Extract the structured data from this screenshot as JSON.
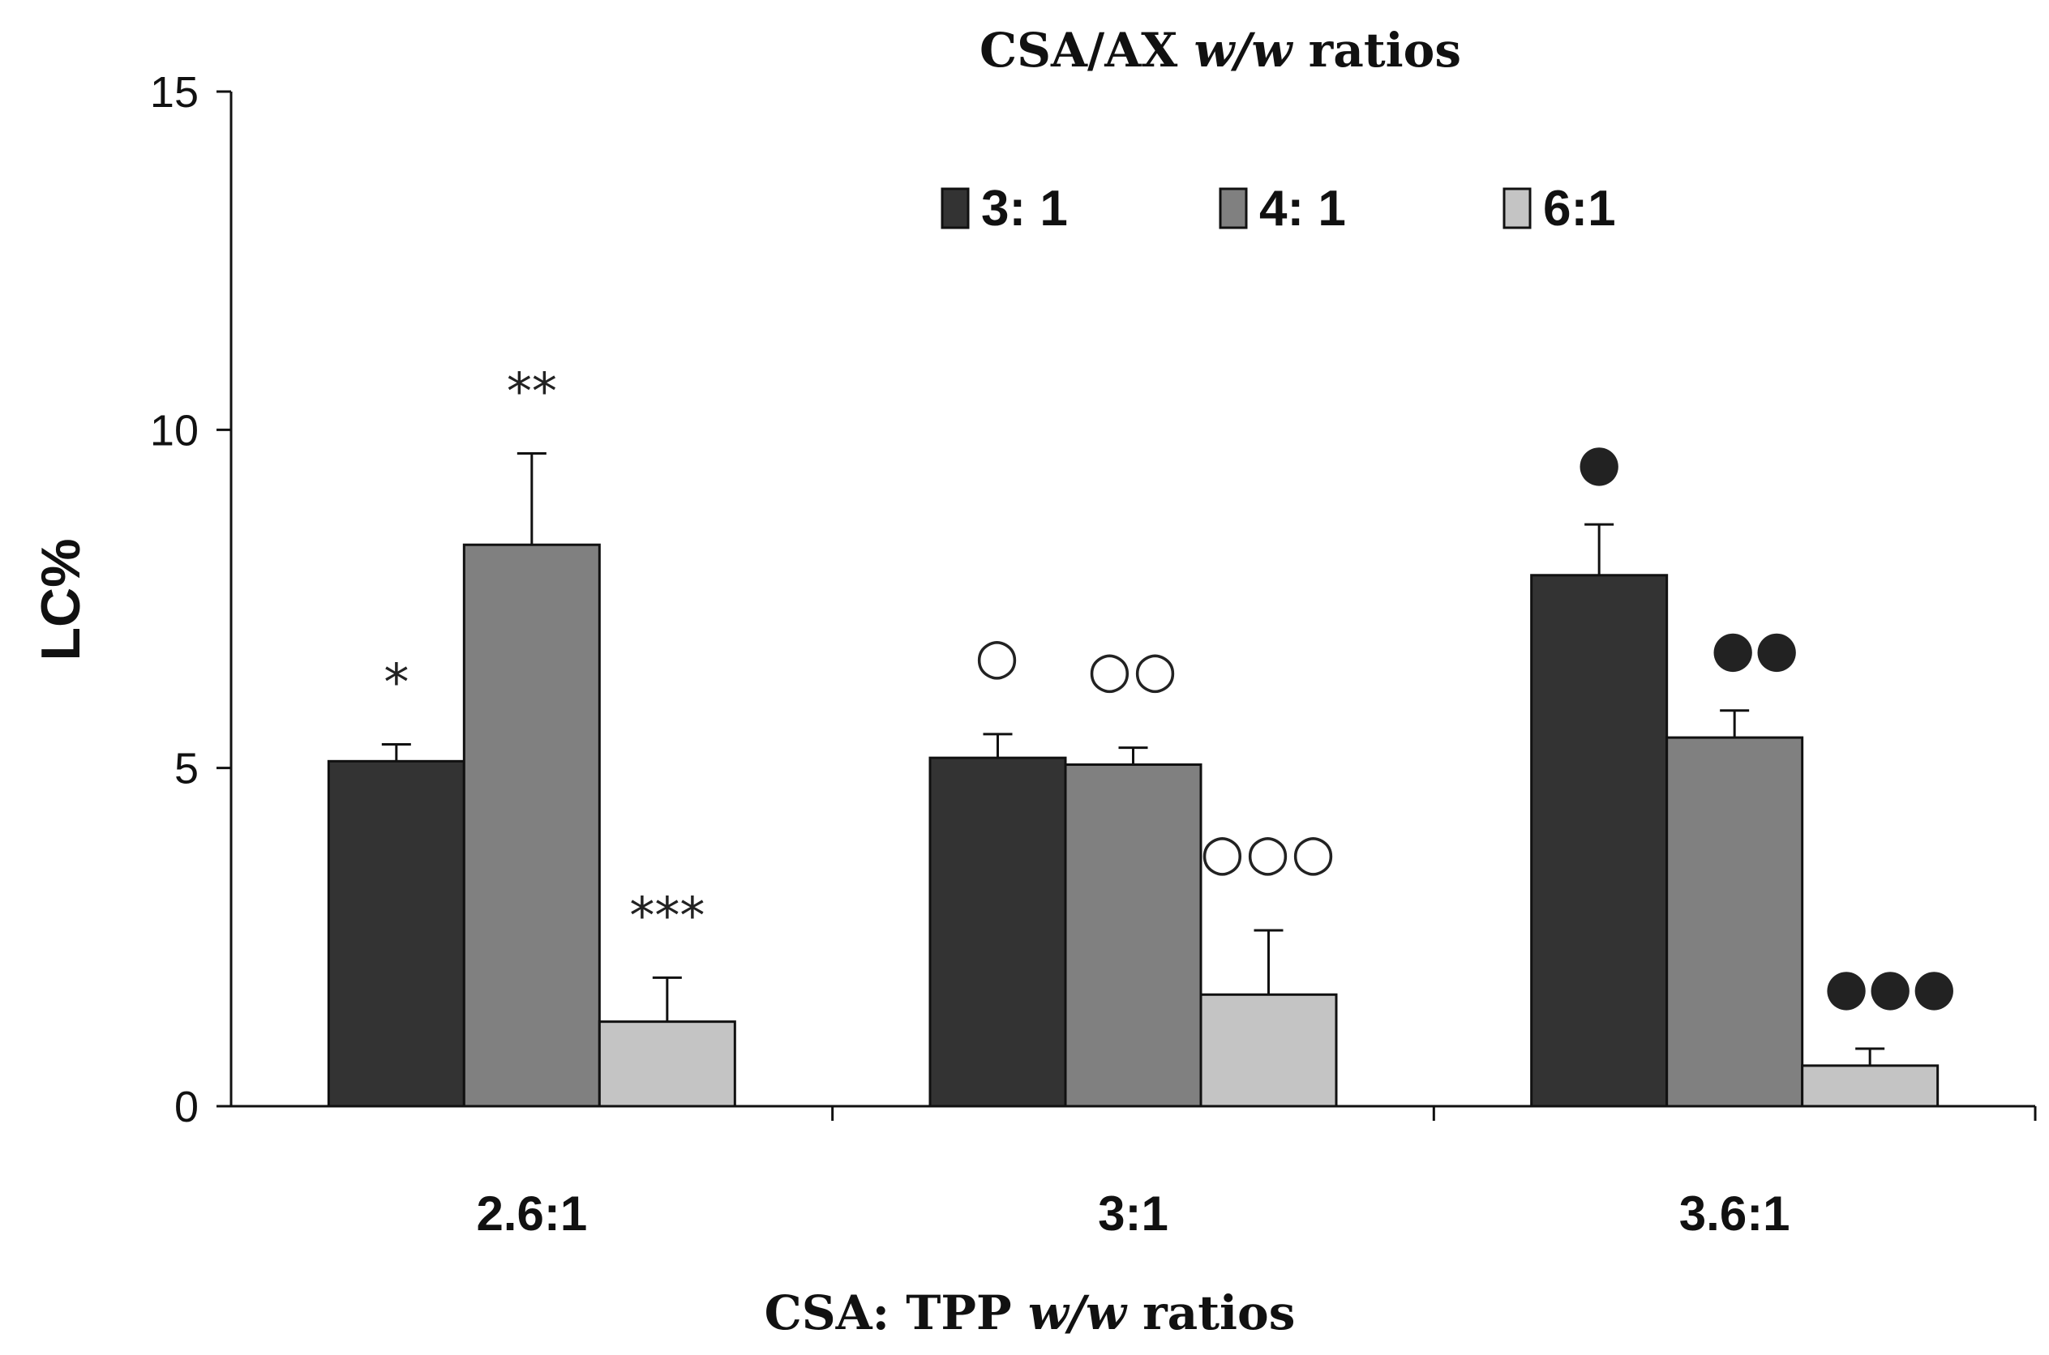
{
  "chart_data": {
    "type": "bar",
    "title": "CSA/AX w/w ratios",
    "title_parts": {
      "prefix": "CSA/AX ",
      "italic": "w/w",
      "suffix": " ratios"
    },
    "xlabel": "CSA: TPP w/w ratios",
    "xlabel_parts": {
      "prefix": "CSA: TPP ",
      "italic": "w/w",
      "suffix": " ratios"
    },
    "ylabel": "LC%",
    "ylim": [
      0,
      15
    ],
    "yticks": [
      "0",
      "5",
      "10",
      "15"
    ],
    "ytick_values": [
      0,
      5,
      10,
      15
    ],
    "categories": [
      "2.6:1",
      "3:1",
      "3.6:1"
    ],
    "legend_position": "top-center",
    "grid": false,
    "series": [
      {
        "name": "3: 1",
        "color": "#333333",
        "values": [
          5.1,
          5.15,
          7.85
        ],
        "errors": [
          0.25,
          0.35,
          0.75
        ],
        "annotations": [
          "*",
          "○",
          "●"
        ]
      },
      {
        "name": "4: 1",
        "color": "#808080",
        "values": [
          8.3,
          5.05,
          5.45
        ],
        "errors": [
          1.35,
          0.25,
          0.4
        ],
        "annotations": [
          "**",
          "○○",
          "●●"
        ]
      },
      {
        "name": "6:1",
        "color": "#c4c4c4",
        "values": [
          1.25,
          1.65,
          0.6
        ],
        "errors": [
          0.65,
          0.95,
          0.25
        ],
        "annotations": [
          "***",
          "○○○",
          "●●●"
        ]
      }
    ]
  }
}
